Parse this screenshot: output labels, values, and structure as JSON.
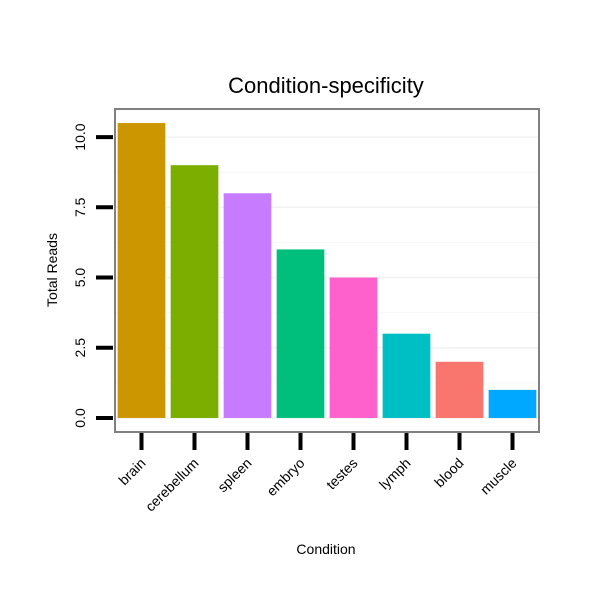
{
  "chart_data": {
    "type": "bar",
    "title": "Condition-specificity",
    "xlabel": "Condition",
    "ylabel": "Total Reads",
    "categories": [
      "brain",
      "cerebellum",
      "spleen",
      "embryo",
      "testes",
      "lymph",
      "blood",
      "muscle"
    ],
    "values": [
      10.5,
      9.0,
      8.0,
      6.0,
      5.0,
      3.0,
      2.0,
      1.0
    ],
    "colors": [
      "#CC9600",
      "#7CAE00",
      "#C77CFF",
      "#00BF7D",
      "#FF61CC",
      "#00BFC4",
      "#F8766D",
      "#00A9FF"
    ],
    "ylim": [
      -0.5,
      11.0
    ],
    "yticks": [
      0.0,
      2.5,
      5.0,
      7.5,
      10.0
    ],
    "ytick_labels": [
      "0.0",
      "2.5",
      "5.0",
      "7.5",
      "10.0"
    ],
    "grid": true,
    "panel_border_color": "#808080"
  }
}
